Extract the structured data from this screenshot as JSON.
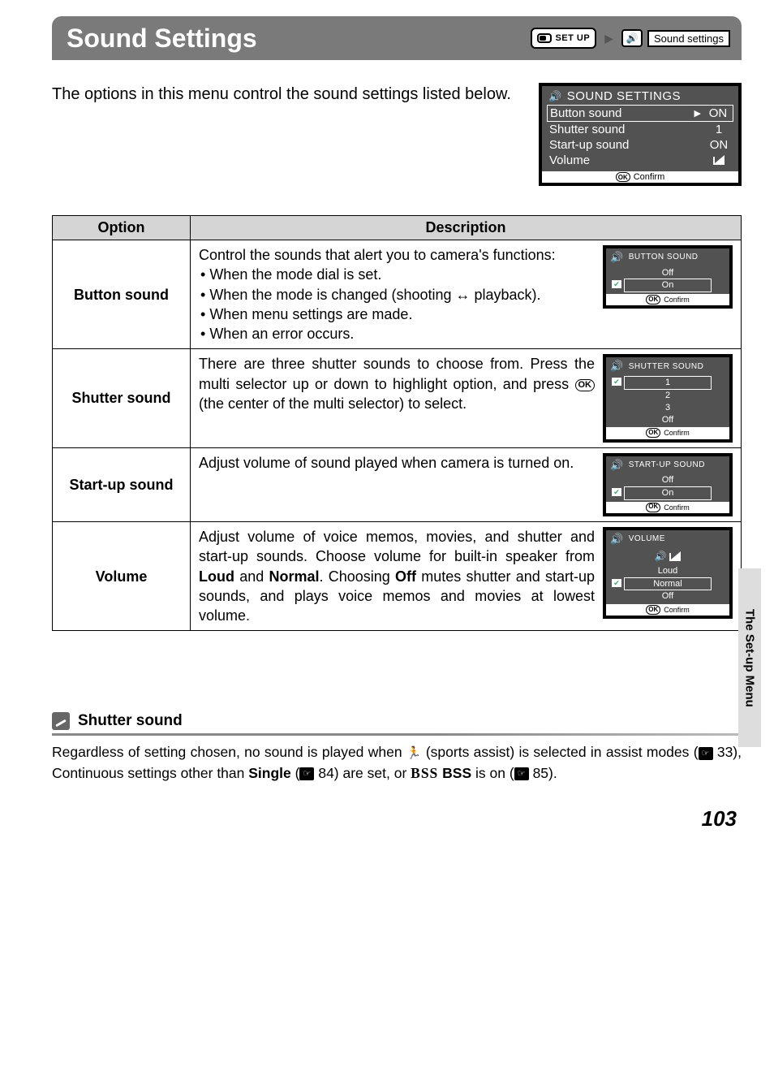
{
  "header": {
    "title": "Sound Settings",
    "setup_badge_text": "SET UP",
    "breadcrumb_label": "Sound settings"
  },
  "intro_text": "The options in this menu control the sound settings listed below.",
  "main_lcd": {
    "title": "SOUND SETTINGS",
    "rows": [
      {
        "label": "Button sound",
        "value": "ON",
        "selected": true
      },
      {
        "label": "Shutter sound",
        "value": "1",
        "selected": false
      },
      {
        "label": "Start-up sound",
        "value": "ON",
        "selected": false
      },
      {
        "label": "Volume",
        "value": "",
        "selected": false,
        "icon": "volume"
      }
    ],
    "confirm": "Confirm"
  },
  "table": {
    "headers": {
      "option": "Option",
      "description": "Description"
    },
    "rows": [
      {
        "option": "Button sound",
        "desc_pre": "Control the sounds that alert you to camera's functions:",
        "bullets": [
          "When the mode dial is set.",
          "When the mode is changed (shooting ↔ playback).",
          "When menu settings are made.",
          "When an error occurs."
        ],
        "lcd": {
          "title": "BUTTON SOUND",
          "opts": [
            {
              "t": "Off"
            },
            {
              "t": "On",
              "sel": true
            }
          ],
          "confirm": "Confirm"
        }
      },
      {
        "option": "Shutter sound",
        "desc_html": "There are three shutter sounds to choose from. Press the multi selector up or down to highlight option, and press <span class='okin'>OK</span> (the center of the multi selector) to select.",
        "lcd": {
          "title": "SHUTTER SOUND",
          "opts": [
            {
              "t": "1",
              "sel": true
            },
            {
              "t": "2"
            },
            {
              "t": "3"
            },
            {
              "t": "Off"
            }
          ],
          "confirm": "Confirm"
        }
      },
      {
        "option": "Start-up sound",
        "desc_pre": "Adjust volume of sound played when camera is turned on.",
        "lcd": {
          "title": "START-UP SOUND",
          "opts": [
            {
              "t": "Off"
            },
            {
              "t": "On",
              "sel": true
            }
          ],
          "confirm": "Confirm"
        }
      },
      {
        "option": "Volume",
        "desc_html": "Adjust volume of voice memos, movies, and shutter and start-up sounds. Choose volume for built-in speaker from <b>Loud</b> and <b>Normal</b>. Choosing <b>Off</b> mutes shutter and start-up sounds, and plays voice memos and movies at lowest volume.",
        "lcd": {
          "title": "VOLUME",
          "vol_icon": true,
          "opts": [
            {
              "t": "Loud"
            },
            {
              "t": "Normal",
              "sel": true
            },
            {
              "t": "Off"
            }
          ],
          "confirm": "Confirm"
        }
      }
    ]
  },
  "side_tab": "The Set-up Menu",
  "note": {
    "title": "Shutter sound",
    "body_parts": {
      "p1": "Regardless of setting chosen, no sound is played when ",
      "p2": " (sports assist) is selected in assist modes (",
      "ref1": "33), Continuous settings other than ",
      "single": "Single",
      "p3": " (",
      "ref2": "84) are set, or ",
      "bss": "BSS",
      "p4": " is on (",
      "ref3": "85)."
    }
  },
  "page_number": "103",
  "colors": {
    "header_bg": "#7a7a7a",
    "lcd_bg": "#525252",
    "th_bg": "#d5d5d5",
    "sidetab_bg": "#dddddd"
  }
}
